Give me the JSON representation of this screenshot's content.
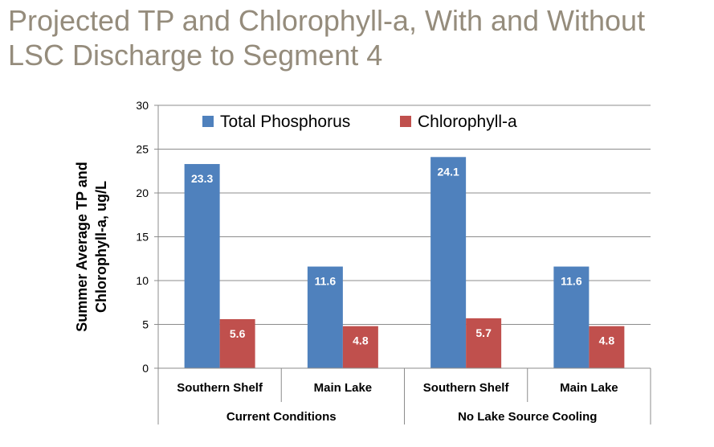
{
  "title_lines": [
    "Projected TP and Chlorophyll-a, With and Without",
    "LSC Discharge to Segment 4"
  ],
  "chart_data": {
    "type": "bar",
    "ylabel_lines": [
      "Summer Average TP and",
      "Chlorophyll-a, ug/L"
    ],
    "ylim": [
      0,
      30
    ],
    "yticks": [
      0,
      5,
      10,
      15,
      20,
      25,
      30
    ],
    "grid": true,
    "legend_position": "top",
    "groups": [
      {
        "label": "Current Conditions",
        "categories": [
          "Southern Shelf",
          "Main Lake"
        ]
      },
      {
        "label": "No Lake Source Cooling",
        "categories": [
          "Southern Shelf",
          "Main Lake"
        ]
      }
    ],
    "categories": [
      "Southern Shelf",
      "Main Lake",
      "Southern Shelf",
      "Main Lake"
    ],
    "series": [
      {
        "name": "Total Phosphorus",
        "color": "#4f81bd",
        "values": [
          23.3,
          11.6,
          24.1,
          11.6
        ],
        "labels": [
          "23.3",
          "11.6",
          "24.1",
          "11.6"
        ]
      },
      {
        "name": "Chlorophyll-a",
        "color": "#c0504d",
        "values": [
          5.6,
          4.8,
          5.7,
          4.8
        ],
        "labels": [
          "5.6",
          "4.8",
          "5.7",
          "4.8"
        ]
      }
    ]
  }
}
